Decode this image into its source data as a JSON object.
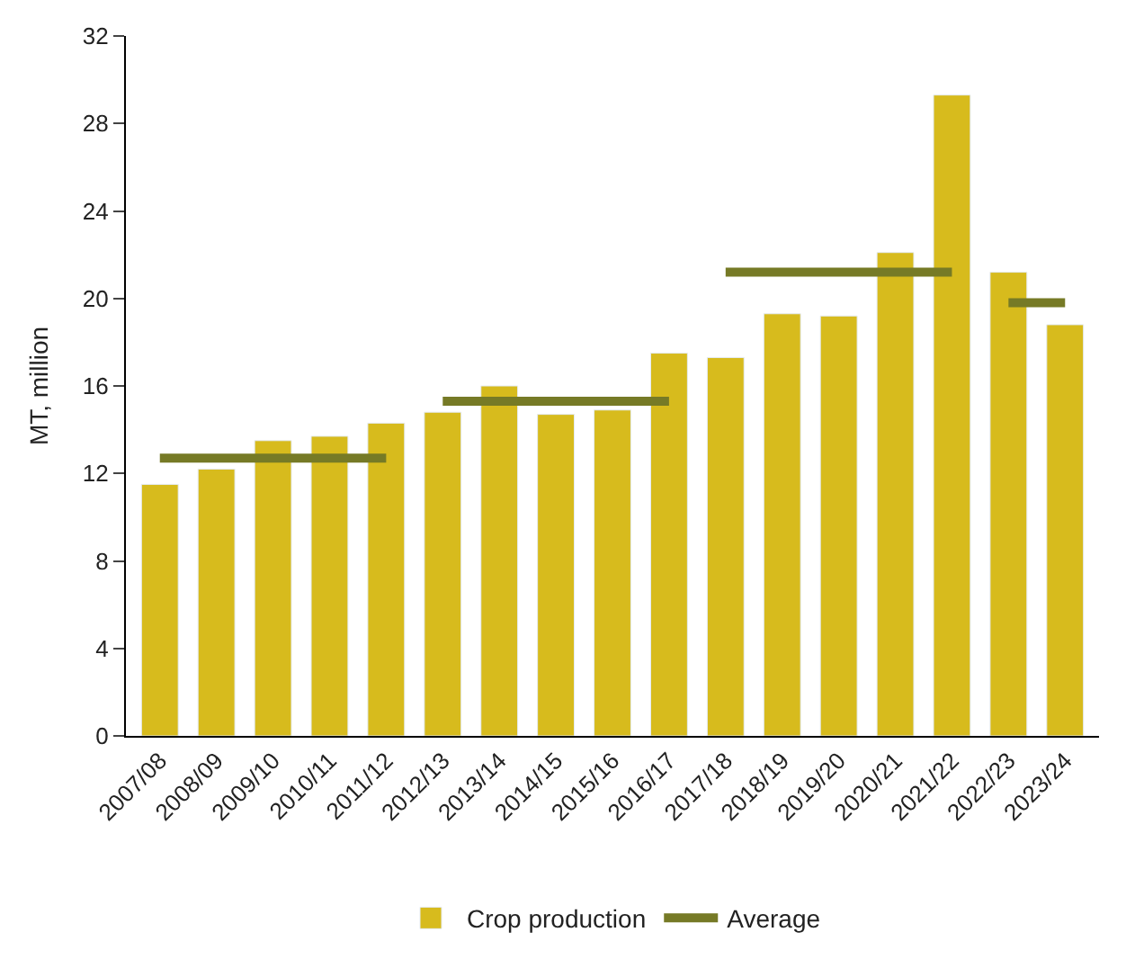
{
  "chart_data": {
    "type": "bar",
    "ylabel": "MT, million",
    "categories": [
      "2007/08",
      "2008/09",
      "2009/10",
      "2010/11",
      "2011/12",
      "2012/13",
      "2013/14",
      "2014/15",
      "2015/16",
      "2016/17",
      "2017/18",
      "2018/19",
      "2019/20",
      "2020/21",
      "2021/22",
      "2022/23",
      "2023/24"
    ],
    "series": [
      {
        "name": "Crop production",
        "color": "#d7bb1d",
        "values": [
          11.5,
          12.2,
          13.5,
          13.7,
          14.3,
          14.8,
          16.0,
          14.7,
          14.9,
          17.5,
          17.3,
          19.3,
          19.2,
          22.1,
          29.3,
          21.2,
          18.8
        ]
      },
      {
        "name": "Average",
        "type": "line",
        "color": "#767a26",
        "values": [
          12.7,
          12.7,
          12.7,
          12.7,
          12.7,
          15.3,
          15.3,
          15.3,
          15.3,
          15.3,
          21.2,
          21.2,
          21.2,
          21.2,
          21.2,
          19.8,
          19.8
        ]
      }
    ],
    "ylim": [
      0,
      32
    ],
    "yticks": [
      0,
      4,
      8,
      12,
      16,
      20,
      24,
      28,
      32
    ],
    "legend": "bottom"
  }
}
